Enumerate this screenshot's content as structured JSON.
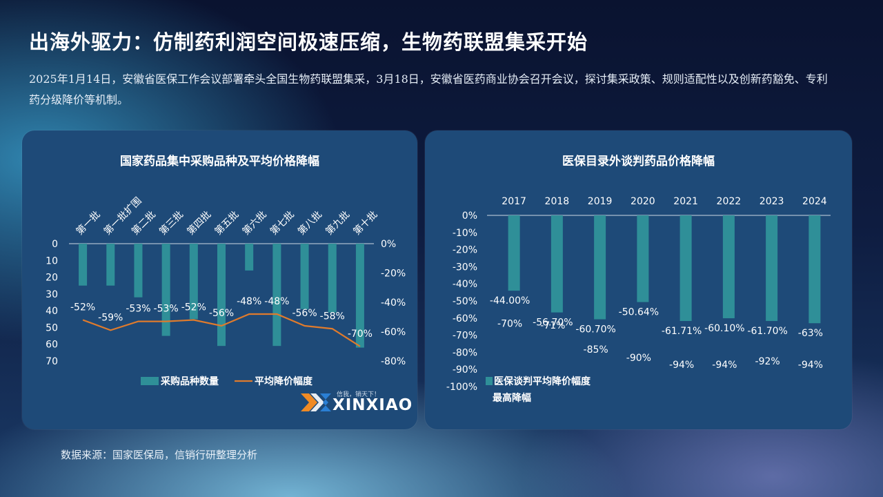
{
  "page": {
    "title": "出海外驱力：仿制药利润空间极速压缩，生物药联盟集采开始",
    "subtitle": "2025年1月14日，安徽省医保工作会议部署牵头全国生物药联盟集采，3月18日，安徽省医药商业协会召开会议，探讨集采政策、规则适配性以及创新药豁免、专利药分级降价等机制。",
    "source": "数据来源：国家医保局，信销行研整理分析"
  },
  "logo": {
    "slogan": "信我，销天下！",
    "text": "XINXIAO",
    "icon": "xinxiao-logo-icon"
  },
  "colors": {
    "bar": "#2f8f98",
    "line": "#e07b2c",
    "panel": "#1e4a78",
    "axis": "#cfd9e4"
  },
  "chart_data": [
    {
      "type": "bar",
      "title": "国家药品集中采购品种及平均价格降幅",
      "categories": [
        "第一批",
        "第一批扩围",
        "第二批",
        "第三批",
        "第四批",
        "第五批",
        "第六批",
        "第七批",
        "第八批",
        "第九批",
        "第十批"
      ],
      "y_ticks": [
        "0",
        "10",
        "20",
        "30",
        "40",
        "50",
        "60",
        "70"
      ],
      "y2_ticks": [
        "0%",
        "-20%",
        "-40%",
        "-60%",
        "-80%"
      ],
      "ylim": [
        0,
        70
      ],
      "y2lim": [
        0,
        -80
      ],
      "y_inverted": true,
      "legend_position": "bottom",
      "series": [
        {
          "name": "采购品种数量",
          "type": "bar",
          "axis": "left",
          "values": [
            25,
            25,
            32,
            55,
            45,
            61,
            16,
            61,
            39,
            41,
            62
          ]
        },
        {
          "name": "平均降价幅度",
          "type": "line",
          "axis": "right",
          "values": [
            -52,
            -59,
            -53,
            -53,
            -52,
            -56,
            -48,
            -48,
            -56,
            -58,
            -70
          ],
          "labels": [
            "-52%",
            "-59%",
            "-53%",
            "-53%",
            "-52%",
            "-56%",
            "-48%",
            "-48%",
            "-56%",
            "-58%",
            "-70%"
          ]
        }
      ]
    },
    {
      "type": "bar",
      "title": "医保目录外谈判药品价格降幅",
      "categories": [
        "2017",
        "2018",
        "2019",
        "2020",
        "2021",
        "2022",
        "2023",
        "2024"
      ],
      "y_ticks": [
        "0%",
        "-10%",
        "-20%",
        "-30%",
        "-40%",
        "-50%",
        "-60%",
        "-70%",
        "-80%",
        "-90%",
        "-100%"
      ],
      "ylim": [
        -100,
        0
      ],
      "legend_position": "bottom-left",
      "series": [
        {
          "name": "医保谈判平均降价幅度",
          "type": "bar",
          "values": [
            -44.0,
            -56.7,
            -60.7,
            -50.64,
            -61.71,
            -60.1,
            -61.7,
            -63
          ],
          "labels": [
            "-44.00%",
            "-56.70%",
            "-60.70%",
            "-50.64%",
            "-61.71%",
            "-60.10%",
            "-61.70%",
            "-63%"
          ]
        },
        {
          "name": "最高降幅",
          "type": "label",
          "values": [
            -70,
            -71,
            -85,
            -90,
            -94,
            -94,
            -92,
            -94
          ],
          "labels": [
            "-70%",
            "-71%",
            "-85%",
            "-90%",
            "-94%",
            "-94%",
            "-92%",
            "-94%"
          ]
        }
      ]
    }
  ]
}
